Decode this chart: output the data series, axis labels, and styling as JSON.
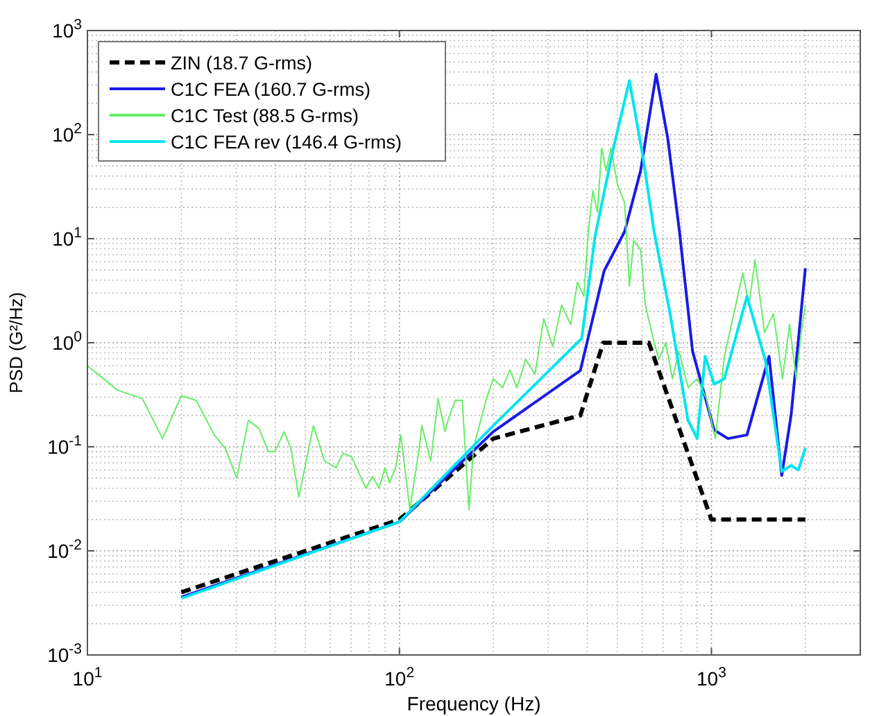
{
  "chart_data": {
    "type": "line",
    "xlabel": "Frequency (Hz)",
    "ylabel": "PSD (G²/Hz)",
    "log": "xy",
    "grid": true,
    "legend": "top left",
    "xlim": [
      10,
      3000
    ],
    "ylim": [
      0.001,
      1000
    ],
    "xticks": [
      {
        "value": 10,
        "label": "10$^{1}$"
      },
      {
        "value": 100,
        "label": "10$^{2}$"
      },
      {
        "value": 1000,
        "label": "10$^{3}$"
      }
    ],
    "yticks": [
      {
        "value": 0.001,
        "label": "10$^{-3}$"
      },
      {
        "value": 0.01,
        "label": "10$^{-2}$"
      },
      {
        "value": 0.1,
        "label": "10$^{-1}$"
      },
      {
        "value": 1,
        "label": "10$^{0}$"
      },
      {
        "value": 10,
        "label": "10$^{1}$"
      },
      {
        "value": 100,
        "label": "10$^{2}$"
      },
      {
        "value": 1000,
        "label": "10$^{3}$"
      }
    ],
    "series": [
      {
        "name": "ZIN (18.7 G-rms)",
        "color": "#000000",
        "line_style": "dashed",
        "x": [
          20,
          100,
          200,
          380,
          450,
          630,
          1000,
          2000
        ],
        "values": [
          0.004,
          0.02,
          0.12,
          0.2,
          1,
          1,
          0.02,
          0.02
        ]
      },
      {
        "name": "C1C FEA (160.7 G-rms)",
        "color": "#1a1ae6",
        "line_style": "solid",
        "x": [
          20,
          100,
          200,
          380,
          453,
          527,
          593,
          665,
          725,
          790,
          870,
          1020,
          1130,
          1300,
          1530,
          1680,
          1800,
          2000
        ],
        "values": [
          0.0036,
          0.019,
          0.14,
          0.54,
          4.9,
          11.7,
          45,
          380,
          91,
          11.7,
          0.83,
          0.145,
          0.12,
          0.13,
          0.74,
          0.053,
          0.2,
          5.2
        ]
      },
      {
        "name": "C1C Test (88.5 G-rms)",
        "color": "#66ee66",
        "line_style": "solid",
        "x": [
          10,
          12.5,
          15,
          17.4,
          20,
          22.3,
          25.5,
          27.7,
          30.1,
          32.8,
          35.5,
          38,
          39.9,
          42.7,
          44.9,
          47.6,
          53,
          57.5,
          62.7,
          65.9,
          70.3,
          78,
          82,
          86,
          90,
          93,
          97.6,
          101,
          108,
          115.7,
          118,
          126,
          133,
          140,
          144,
          151,
          159,
          167,
          173,
          190,
          200,
          214,
          226,
          238,
          254,
          272,
          290,
          310,
          331,
          354,
          372,
          390,
          403,
          417,
          431,
          445,
          460,
          476,
          500,
          527,
          546,
          563,
          593,
          614,
          635,
          656,
          678,
          714,
          750,
          787,
          842,
          900,
          964,
          1029,
          1100,
          1180,
          1260,
          1320,
          1380,
          1480,
          1580,
          1690,
          1780,
          1870,
          1940,
          2000
        ],
        "values": [
          0.6,
          0.35,
          0.29,
          0.12,
          0.31,
          0.28,
          0.13,
          0.096,
          0.05,
          0.18,
          0.15,
          0.09,
          0.09,
          0.14,
          0.096,
          0.033,
          0.16,
          0.073,
          0.063,
          0.087,
          0.08,
          0.04,
          0.052,
          0.04,
          0.063,
          0.045,
          0.066,
          0.13,
          0.025,
          0.096,
          0.16,
          0.073,
          0.29,
          0.14,
          0.19,
          0.28,
          0.28,
          0.025,
          0.1,
          0.29,
          0.45,
          0.37,
          0.55,
          0.37,
          0.69,
          0.5,
          1.7,
          0.92,
          2.3,
          1.5,
          3.8,
          2.8,
          11.7,
          29,
          18,
          74,
          45,
          74,
          33,
          22,
          3.5,
          9.6,
          7.8,
          2.3,
          1.5,
          1,
          0.69,
          1,
          0.45,
          0.83,
          0.37,
          0.45,
          0.29,
          0.12,
          0.74,
          1.9,
          4.7,
          2.3,
          6.3,
          1.25,
          1.9,
          0.45,
          1.5,
          0.45,
          1.25,
          2.3
        ]
      },
      {
        "name": "C1C FEA rev (146.4 G-rms)",
        "color": "#00e5ee",
        "line_style": "solid",
        "x": [
          20,
          100,
          200,
          384,
          424,
          485,
          546,
          604,
          655,
          737,
          841,
          900,
          955,
          1020,
          1100,
          1300,
          1490,
          1680,
          1800,
          1900,
          2000
        ],
        "values": [
          0.0035,
          0.019,
          0.16,
          1.1,
          10.7,
          74,
          330,
          60,
          11.7,
          1.9,
          0.18,
          0.12,
          0.74,
          0.4,
          0.45,
          2.8,
          0.67,
          0.058,
          0.066,
          0.06,
          0.097
        ]
      }
    ]
  }
}
